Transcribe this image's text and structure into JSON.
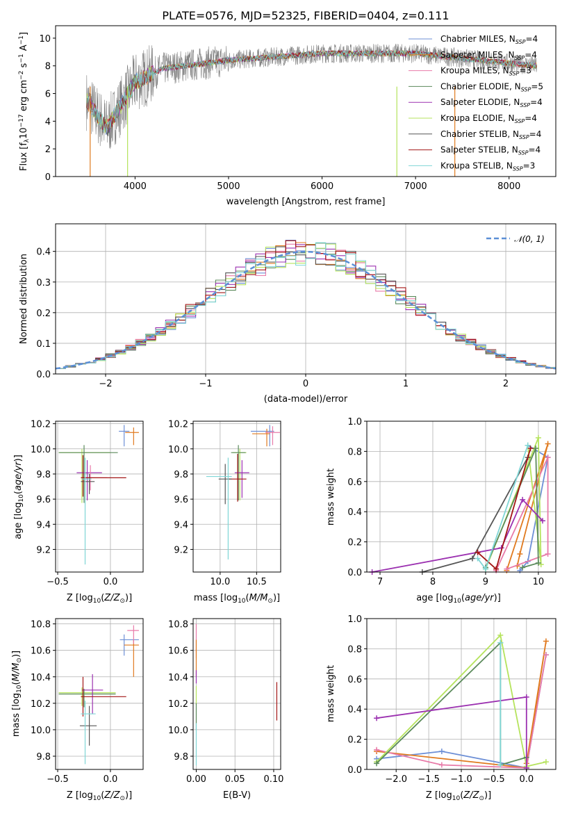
{
  "chart_data": [
    {
      "type": "line",
      "title": "PLATE=0576, MJD=52325, FIBERID=0404, z=0.111",
      "xlabel": "wavelength [Angstrom, rest frame]",
      "ylabel": "Flux [f_λ10^-17 erg cm^-2 s^-1 A^-1]",
      "xlim": [
        3150,
        8500
      ],
      "ylim": [
        0,
        10.9
      ],
      "xticks": [
        "4000",
        "5000",
        "6000",
        "7000",
        "8000"
      ],
      "yticks": [
        "0",
        "2",
        "4",
        "6",
        "8",
        "10"
      ],
      "legend_position": "top-right",
      "legend": [
        {
          "label": "Chabrier MILES, N",
          "sub": "SSP",
          "tail": "=4"
        },
        {
          "label": "Salpeter MILES, N",
          "sub": "SSP",
          "tail": "=4"
        },
        {
          "label": "Kroupa MILES, N",
          "sub": "SSP",
          "tail": "=3"
        },
        {
          "label": "Chabrier ELODIE, N",
          "sub": "SSP",
          "tail": "=5"
        },
        {
          "label": "Salpeter ELODIE, N",
          "sub": "SSP",
          "tail": "=4"
        },
        {
          "label": "Kroupa ELODIE, N",
          "sub": "SSP",
          "tail": "=4"
        },
        {
          "label": "Chabrier STELIB, N",
          "sub": "SSP",
          "tail": "=4"
        },
        {
          "label": "Salpeter STELIB, N",
          "sub": "SSP",
          "tail": "=4"
        },
        {
          "label": "Kroupa STELIB, N",
          "sub": "SSP",
          "tail": "=3"
        }
      ],
      "data_line": {
        "color": "#808080",
        "x_range": [
          3480,
          8300
        ],
        "note_points": [
          [
            3480,
            5.5
          ],
          [
            3700,
            3.5
          ],
          [
            4000,
            6.8
          ],
          [
            4300,
            7.8
          ],
          [
            5000,
            8.4
          ],
          [
            6000,
            8.9
          ],
          [
            7000,
            8.9
          ],
          [
            8000,
            8.2
          ],
          [
            8300,
            8.0
          ]
        ]
      }
    },
    {
      "type": "histogram",
      "xlabel": "(data-model)/error",
      "ylabel": "Normed distribution",
      "xlim": [
        -2.5,
        2.5
      ],
      "ylim": [
        0,
        0.49
      ],
      "xticks": [
        "−2",
        "−1",
        "0",
        "1",
        "2"
      ],
      "yticks": [
        "0.0",
        "0.1",
        "0.2",
        "0.3",
        "0.4"
      ],
      "grid": true,
      "legend_label": "𝒩(0, 1)",
      "legend_position": "top-right",
      "bin_width": 0.1
    },
    {
      "type": "scatter-errorbar",
      "xlabel": "Z [log10(Z/Z⊙)]",
      "ylabel": "age  [log10(age/yr)]",
      "xlim": [
        -0.52,
        0.31
      ],
      "ylim": [
        9.02,
        10.22
      ],
      "xticks": [
        "−0.5",
        "0.0"
      ],
      "xtick_values": [
        -0.5,
        0.0
      ],
      "yticks": [
        "9.2",
        "9.4",
        "9.6",
        "9.8",
        "10.0",
        "10.2"
      ],
      "ytick_values": [
        9.2,
        9.4,
        9.6,
        9.8,
        10.0,
        10.2
      ],
      "points": [
        {
          "x": 0.13,
          "y": 10.14,
          "xerr": [
            0.05,
            0.05
          ],
          "yerr": [
            0.12,
            0.05
          ],
          "color": "#6d8fd6"
        },
        {
          "x": 0.22,
          "y": 10.13,
          "xerr": [
            0.08,
            0.05
          ],
          "yerr": [
            0.1,
            0.04
          ],
          "color": "#e07a1f"
        },
        {
          "x": -0.27,
          "y": 9.97,
          "xerr": [
            0.22,
            0.27
          ],
          "yerr": [
            0.4,
            0.03
          ],
          "color": "#b5e35c"
        },
        {
          "x": -0.25,
          "y": 9.97,
          "xerr": [
            0.24,
            0.32
          ],
          "yerr": [
            0.4,
            0.06
          ],
          "color": "#5b8a5b"
        },
        {
          "x": -0.22,
          "y": 9.81,
          "xerr": [
            0.1,
            0.14
          ],
          "yerr": [
            0.22,
            0.1
          ],
          "color": "#9b30b0"
        },
        {
          "x": -0.19,
          "y": 9.77,
          "xerr": [
            0.09,
            0.16
          ],
          "yerr": [
            0.1,
            0.1
          ],
          "color": "#e87aa8"
        },
        {
          "x": -0.2,
          "y": 9.74,
          "xerr": [
            0.08,
            0.05
          ],
          "yerr": [
            0.1,
            0.06
          ],
          "color": "#555555"
        },
        {
          "x": -0.26,
          "y": 9.77,
          "xerr": [
            0.02,
            0.41
          ],
          "yerr": [
            0.15,
            0.18
          ],
          "color": "#a31515"
        },
        {
          "x": -0.24,
          "y": 9.76,
          "xerr": [
            0.03,
            0.06
          ],
          "yerr": [
            0.68,
            0.17
          ],
          "color": "#7fd6d6"
        }
      ]
    },
    {
      "type": "scatter-errorbar",
      "xlabel": "mass [log10(M/M⊙)]",
      "xlim": [
        9.63,
        10.83
      ],
      "ylim": [
        9.02,
        10.22
      ],
      "xticks": [
        "10.0",
        "10.5"
      ],
      "xtick_values": [
        10.0,
        10.5
      ],
      "yticks": [
        "9.2",
        "9.4",
        "9.6",
        "9.8",
        "10.0",
        "10.2"
      ],
      "ytick_values": [
        9.2,
        9.4,
        9.6,
        9.8,
        10.0,
        10.2
      ],
      "points": [
        {
          "x": 10.68,
          "y": 10.14,
          "xerr": [
            0.26,
            0.06
          ],
          "yerr": [
            0.12,
            0.05
          ],
          "color": "#6d8fd6"
        },
        {
          "x": 10.64,
          "y": 10.12,
          "xerr": [
            0.2,
            0.04
          ],
          "yerr": [
            0.1,
            0.04
          ],
          "color": "#e07a1f"
        },
        {
          "x": 10.72,
          "y": 10.13,
          "xerr": [
            0.1,
            0.1
          ],
          "yerr": [
            0.1,
            0.05
          ],
          "color": "#e87aa8"
        },
        {
          "x": 10.27,
          "y": 9.97,
          "xerr": [
            0.1,
            0.09
          ],
          "yerr": [
            0.38,
            0.03
          ],
          "color": "#b5e35c"
        },
        {
          "x": 10.25,
          "y": 9.97,
          "xerr": [
            0.1,
            0.1
          ],
          "yerr": [
            0.38,
            0.06
          ],
          "color": "#5b8a5b"
        },
        {
          "x": 10.3,
          "y": 9.81,
          "xerr": [
            0.1,
            0.1
          ],
          "yerr": [
            0.2,
            0.1
          ],
          "color": "#9b30b0"
        },
        {
          "x": 10.24,
          "y": 9.76,
          "xerr": [
            0.14,
            0.12
          ],
          "yerr": [
            0.18,
            0.2
          ],
          "color": "#a31515"
        },
        {
          "x": 10.07,
          "y": 9.76,
          "xerr": [
            0.09,
            0.09
          ],
          "yerr": [
            0.2,
            0.12
          ],
          "color": "#555555"
        },
        {
          "x": 10.11,
          "y": 9.78,
          "xerr": [
            0.3,
            0.05
          ],
          "yerr": [
            0.66,
            0.15
          ],
          "color": "#7fd6d6"
        }
      ]
    },
    {
      "type": "line",
      "xlabel": "age  [log10(age/yr)]",
      "ylabel": "mass weight",
      "xlim": [
        6.75,
        10.33
      ],
      "ylim": [
        0,
        1.0
      ],
      "xticks": [
        "7",
        "8",
        "9",
        "10"
      ],
      "xtick_values": [
        7,
        8,
        9,
        10
      ],
      "yticks": [
        "0.0",
        "0.2",
        "0.4",
        "0.6",
        "0.8",
        "1.0"
      ],
      "ytick_values": [
        0,
        0.2,
        0.4,
        0.6,
        0.8,
        1.0
      ],
      "grid": true,
      "series": [
        {
          "color": "#6d8fd6",
          "x": [
            9.65,
            9.8,
            10.18,
            9.8
          ],
          "y": [
            0.01,
            0.07,
            0.76,
            0.84
          ]
        },
        {
          "color": "#e07a1f",
          "x": [
            9.6,
            9.65,
            10.18,
            9.4
          ],
          "y": [
            0.04,
            0.12,
            0.85,
            0.01
          ]
        },
        {
          "color": "#e87aa8",
          "x": [
            9.2,
            10.18,
            10.18,
            9.4
          ],
          "y": [
            0.01,
            0.76,
            0.12,
            0.02
          ]
        },
        {
          "color": "#b5e35c",
          "x": [
            9.0,
            10.0,
            10.05,
            9.8
          ],
          "y": [
            0.02,
            0.89,
            0.05,
            0.84
          ]
        },
        {
          "color": "#5b8a5b",
          "x": [
            9.0,
            9.95,
            10.0,
            9.7
          ],
          "y": [
            0.03,
            0.82,
            0.06,
            0.03
          ]
        },
        {
          "color": "#9b30b0",
          "x": [
            6.85,
            9.3,
            9.7,
            10.08
          ],
          "y": [
            0.0,
            0.16,
            0.48,
            0.34
          ]
        },
        {
          "color": "#555555",
          "x": [
            7.8,
            8.75,
            9.8
          ],
          "y": [
            0.0,
            0.09,
            0.76
          ]
        },
        {
          "color": "#a31515",
          "x": [
            8.85,
            9.2,
            9.85
          ],
          "y": [
            0.13,
            0.02,
            0.82
          ]
        },
        {
          "color": "#7fd6d6",
          "x": [
            8.85,
            9.0,
            9.8
          ],
          "y": [
            0.09,
            0.02,
            0.84
          ]
        }
      ]
    },
    {
      "type": "scatter-errorbar",
      "xlabel": "Z [log10(Z/Z⊙)]",
      "ylabel": "mass [log10(M/M⊙)]",
      "xlim": [
        -0.52,
        0.31
      ],
      "ylim": [
        9.7,
        10.84
      ],
      "xticks": [
        "−0.5",
        "0.0"
      ],
      "xtick_values": [
        -0.5,
        0.0
      ],
      "yticks": [
        "9.8",
        "10.0",
        "10.2",
        "10.4",
        "10.6",
        "10.8"
      ],
      "ytick_values": [
        9.8,
        10.0,
        10.2,
        10.4,
        10.6,
        10.8
      ],
      "points": [
        {
          "x": 0.13,
          "y": 10.68,
          "xerr": [
            0.04,
            0.14
          ],
          "yerr": [
            0.12,
            0.04
          ],
          "color": "#6d8fd6"
        },
        {
          "x": 0.22,
          "y": 10.64,
          "xerr": [
            0.09,
            0.05
          ],
          "yerr": [
            0.24,
            0.04
          ],
          "color": "#e07a1f"
        },
        {
          "x": 0.22,
          "y": 10.75,
          "xerr": [
            0.06,
            0.05
          ],
          "yerr": [
            0.1,
            0.04
          ],
          "color": "#e87aa8"
        },
        {
          "x": -0.27,
          "y": 10.28,
          "xerr": [
            0.22,
            0.32
          ],
          "yerr": [
            0.1,
            0.04
          ],
          "color": "#b5e35c"
        },
        {
          "x": -0.25,
          "y": 10.27,
          "xerr": [
            0.24,
            0.3
          ],
          "yerr": [
            0.1,
            0.04
          ],
          "color": "#5b8a5b"
        },
        {
          "x": -0.17,
          "y": 10.3,
          "xerr": [
            0.1,
            0.1
          ],
          "yerr": [
            0.18,
            0.12
          ],
          "color": "#9b30b0"
        },
        {
          "x": -0.26,
          "y": 10.25,
          "xerr": [
            0.02,
            0.41
          ],
          "yerr": [
            0.15,
            0.15
          ],
          "color": "#a31515"
        },
        {
          "x": -0.2,
          "y": 10.03,
          "xerr": [
            0.09,
            0.07
          ],
          "yerr": [
            0.15,
            0.15
          ],
          "color": "#555555"
        },
        {
          "x": -0.24,
          "y": 10.12,
          "xerr": [
            0.04,
            0.1
          ],
          "yerr": [
            0.38,
            0.1
          ],
          "color": "#7fd6d6"
        }
      ]
    },
    {
      "type": "scatter-errorbar",
      "xlabel": "E(B-V)",
      "xlim": [
        -0.004,
        0.109
      ],
      "ylim": [
        9.7,
        10.84
      ],
      "xticks": [
        "0.00",
        "0.05",
        "0.10"
      ],
      "xtick_values": [
        0.0,
        0.05,
        0.1
      ],
      "yticks": [
        "9.8",
        "10.0",
        "10.2",
        "10.4",
        "10.6",
        "10.8"
      ],
      "ytick_values": [
        9.8,
        10.0,
        10.2,
        10.4,
        10.6,
        10.8
      ],
      "points": [
        {
          "x": 0.0,
          "y": 10.68,
          "xerr": [
            0,
            0
          ],
          "yerr": [
            0.14,
            0.12
          ],
          "color": "#e87aa8"
        },
        {
          "x": 0.0,
          "y": 10.6,
          "xerr": [
            0,
            0
          ],
          "yerr": [
            0.2,
            0.08
          ],
          "color": "#e07a1f"
        },
        {
          "x": 0.0,
          "y": 10.4,
          "xerr": [
            0,
            0
          ],
          "yerr": [
            0.05,
            0.05
          ],
          "color": "#9b30b0"
        },
        {
          "x": 0.0,
          "y": 10.27,
          "xerr": [
            0,
            0
          ],
          "yerr": [
            0.08,
            0.06
          ],
          "color": "#b5e35c"
        },
        {
          "x": 0.0,
          "y": 10.1,
          "xerr": [
            0,
            0
          ],
          "yerr": [
            0.1,
            0.1
          ],
          "color": "#5b8a5b"
        },
        {
          "x": 0.0,
          "y": 9.95,
          "xerr": [
            0,
            0
          ],
          "yerr": [
            0.22,
            0.1
          ],
          "color": "#7fd6d6"
        },
        {
          "x": 0.104,
          "y": 10.22,
          "xerr": [
            0,
            0
          ],
          "yerr": [
            0.15,
            0.14
          ],
          "color": "#a31515"
        }
      ]
    },
    {
      "type": "line",
      "xlabel": "Z [log10(Z/Z⊙)]",
      "ylabel": "mass weight",
      "xlim": [
        -2.45,
        0.45
      ],
      "ylim": [
        0,
        1.0
      ],
      "xticks": [
        "−2.0",
        "−1.5",
        "−1.0",
        "−0.5",
        "0.0"
      ],
      "xtick_values": [
        -2.0,
        -1.5,
        -1.0,
        -0.5,
        0.0
      ],
      "yticks": [
        "0.0",
        "0.2",
        "0.4",
        "0.6",
        "0.8",
        "1.0"
      ],
      "ytick_values": [
        0,
        0.2,
        0.4,
        0.6,
        0.8,
        1.0
      ],
      "grid": true,
      "series": [
        {
          "color": "#6d8fd6",
          "x": [
            -2.3,
            -1.3,
            0.0,
            0.3
          ],
          "y": [
            0.07,
            0.12,
            0.01,
            0.76
          ]
        },
        {
          "color": "#e07a1f",
          "x": [
            -2.3,
            0.0,
            0.3,
            0.0
          ],
          "y": [
            0.12,
            0.01,
            0.85,
            0.04
          ]
        },
        {
          "color": "#e87aa8",
          "x": [
            -2.3,
            -1.3,
            0.0,
            0.3
          ],
          "y": [
            0.13,
            0.03,
            0.01,
            0.76
          ]
        },
        {
          "color": "#b5e35c",
          "x": [
            -2.3,
            -0.4,
            0.0,
            0.3
          ],
          "y": [
            0.05,
            0.89,
            0.02,
            0.05
          ]
        },
        {
          "color": "#5b8a5b",
          "x": [
            -2.3,
            -0.4,
            -0.4,
            0.0
          ],
          "y": [
            0.04,
            0.84,
            0.03,
            0.08
          ]
        },
        {
          "color": "#9b30b0",
          "x": [
            -2.3,
            0.0,
            0.0
          ],
          "y": [
            0.34,
            0.48,
            0.01
          ]
        },
        {
          "color": "#7fd6d6",
          "x": [
            -0.4,
            -0.4
          ],
          "y": [
            0.84,
            0.03
          ]
        }
      ]
    }
  ]
}
